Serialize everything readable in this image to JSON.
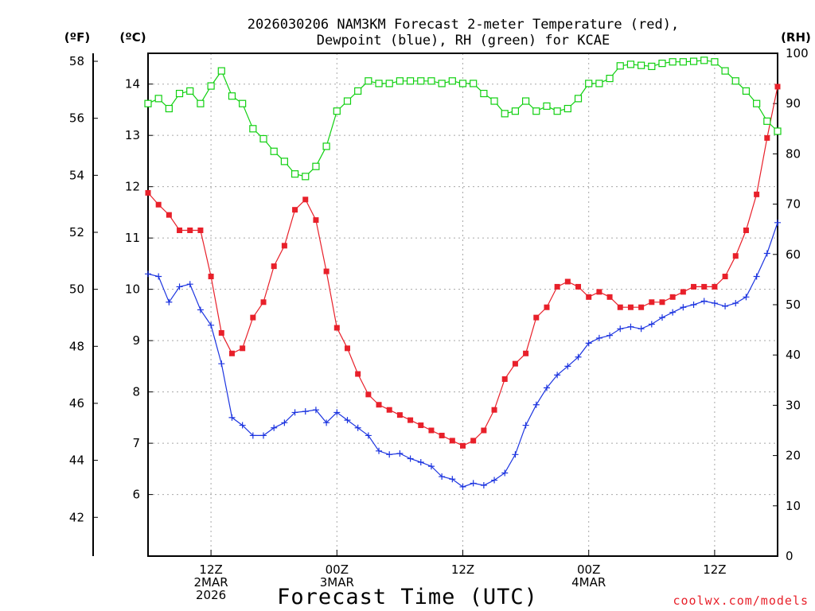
{
  "chart_data": {
    "type": "line",
    "title": [
      "2026030206 NAM3KM Forecast 2-meter Temperature (red),",
      "Dewpoint (blue), RH (green) for KCAE"
    ],
    "xlabel": "Forecast Time (UTC)",
    "credit": "coolwx.com/models",
    "axis_units": {
      "fahrenheit": "(ºF)",
      "celsius": "(ºC)",
      "rh": "(RH)"
    },
    "x_hours_range": [
      0,
      60
    ],
    "x_ticks": [
      {
        "hour": 6,
        "lines": [
          "12Z",
          "2MAR",
          "2026"
        ]
      },
      {
        "hour": 18,
        "lines": [
          "00Z",
          "3MAR"
        ]
      },
      {
        "hour": 30,
        "lines": [
          "12Z"
        ]
      },
      {
        "hour": 42,
        "lines": [
          "00Z",
          "4MAR"
        ]
      },
      {
        "hour": 54,
        "lines": [
          "12Z"
        ]
      }
    ],
    "celsius_range": [
      4.8,
      14.6
    ],
    "celsius_ticks": [
      6,
      7,
      8,
      9,
      10,
      11,
      12,
      13,
      14
    ],
    "fahrenheit_ticks": [
      42,
      44,
      46,
      48,
      50,
      52,
      54,
      56,
      58
    ],
    "rh_range": [
      0,
      100
    ],
    "rh_ticks": [
      0,
      10,
      20,
      30,
      40,
      50,
      60,
      70,
      80,
      90,
      100
    ],
    "colors": {
      "temperature": "#e8202a",
      "dewpoint": "#1c34e0",
      "rh": "#10d010",
      "grid": "#a8a8a8"
    },
    "series": [
      {
        "name": "Temperature",
        "unit": "C",
        "values": [
          11.88,
          11.65,
          11.45,
          11.15,
          11.15,
          11.15,
          10.25,
          9.15,
          8.75,
          8.85,
          9.45,
          9.75,
          10.45,
          10.85,
          11.55,
          11.75,
          11.35,
          10.35,
          9.25,
          8.85,
          8.35,
          7.95,
          7.75,
          7.65,
          7.55,
          7.45,
          7.35,
          7.25,
          7.15,
          7.05,
          6.95,
          7.05,
          7.25,
          7.65,
          8.25,
          8.55,
          8.75,
          9.45,
          9.65,
          10.05,
          10.15,
          10.05,
          9.85,
          9.95,
          9.85,
          9.65,
          9.65,
          9.65,
          9.75,
          9.75,
          9.85,
          9.95,
          10.05,
          10.05,
          10.05,
          10.25,
          10.65,
          11.15,
          11.85,
          12.95,
          13.95
        ]
      },
      {
        "name": "Dewpoint",
        "unit": "C",
        "values": [
          10.3,
          10.25,
          9.75,
          10.05,
          10.1,
          9.6,
          9.3,
          8.55,
          7.5,
          7.35,
          7.15,
          7.15,
          7.3,
          7.4,
          7.6,
          7.62,
          7.65,
          7.4,
          7.6,
          7.45,
          7.3,
          7.15,
          6.85,
          6.78,
          6.8,
          6.7,
          6.63,
          6.55,
          6.35,
          6.3,
          6.15,
          6.22,
          6.18,
          6.28,
          6.42,
          6.78,
          7.35,
          7.75,
          8.08,
          8.33,
          8.5,
          8.68,
          8.95,
          9.05,
          9.1,
          9.23,
          9.27,
          9.23,
          9.32,
          9.45,
          9.55,
          9.65,
          9.7,
          9.77,
          9.73,
          9.67,
          9.73,
          9.85,
          10.25,
          10.7,
          11.3
        ]
      },
      {
        "name": "RH",
        "unit": "%",
        "values": [
          90,
          91,
          89,
          92,
          92.5,
          90,
          93.5,
          96.5,
          91.5,
          90,
          85,
          83,
          80.5,
          78.5,
          76,
          75.5,
          77.5,
          81.5,
          88.5,
          90.5,
          92.5,
          94.5,
          94,
          94,
          94.5,
          94.5,
          94.5,
          94.5,
          94,
          94.5,
          94,
          94,
          92,
          90.5,
          88,
          88.5,
          90.5,
          88.5,
          89.5,
          88.5,
          89,
          91,
          94,
          94,
          95,
          97.5,
          97.8,
          97.6,
          97.4,
          98,
          98.3,
          98.3,
          98.4,
          98.6,
          98.3,
          96.5,
          94.5,
          92.5,
          90,
          86.5,
          84.5
        ]
      }
    ]
  }
}
